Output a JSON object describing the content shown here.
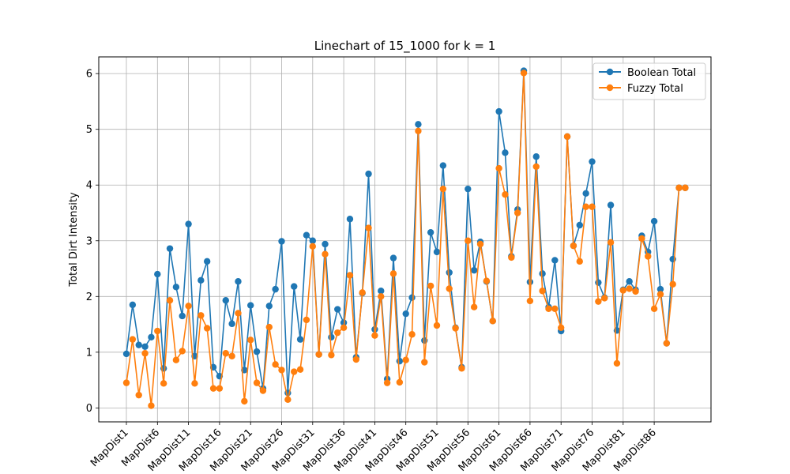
{
  "chart_data": {
    "type": "line",
    "title": "Linechart of 15_1000 for k = 1",
    "xlabel": "",
    "ylabel": "Total Dirt Intensity",
    "ylim": [
      -0.25,
      6.3
    ],
    "yticks": [
      0,
      1,
      2,
      3,
      4,
      5,
      6
    ],
    "grid": true,
    "legend_position": "top-right",
    "x_tick_labels": [
      "MapDist1",
      "MapDist6",
      "MapDist11",
      "MapDist16",
      "MapDist21",
      "MapDist26",
      "MapDist31",
      "MapDist36",
      "MapDist41",
      "MapDist46",
      "MapDist51",
      "MapDist56",
      "MapDist61",
      "MapDist66",
      "MapDist71",
      "MapDist76",
      "MapDist81",
      "MapDist86"
    ],
    "x_tick_every": 5,
    "point_count": 91,
    "series": [
      {
        "name": "Boolean Total",
        "color": "#1f77b4",
        "values": [
          0.97,
          1.85,
          1.13,
          1.1,
          1.27,
          2.4,
          0.71,
          2.86,
          2.17,
          1.65,
          3.3,
          0.93,
          2.29,
          2.63,
          0.73,
          0.57,
          1.93,
          1.51,
          2.27,
          0.68,
          1.84,
          1.01,
          0.35,
          1.83,
          2.13,
          2.99,
          0.27,
          2.18,
          1.23,
          3.1,
          3.0,
          0.96,
          2.94,
          1.27,
          1.77,
          1.53,
          3.39,
          0.91,
          2.06,
          4.2,
          1.41,
          2.1,
          0.52,
          2.69,
          0.84,
          1.69,
          1.98,
          5.09,
          1.21,
          3.15,
          2.8,
          4.35,
          2.43,
          1.44,
          0.73,
          3.93,
          2.47,
          2.98,
          2.27,
          1.56,
          5.32,
          4.58,
          2.72,
          3.56,
          6.05,
          2.26,
          4.51,
          2.41,
          1.81,
          2.65,
          1.38,
          4.87,
          2.91,
          3.28,
          3.85,
          4.42,
          2.25,
          1.98,
          3.64,
          1.39,
          2.12,
          2.27,
          2.12,
          3.09,
          2.8,
          3.35,
          2.13,
          1.16,
          2.67,
          3.95,
          3.95
        ]
      },
      {
        "name": "Fuzzy Total",
        "color": "#ff7f0e",
        "values": [
          0.45,
          1.23,
          0.23,
          0.98,
          0.04,
          1.38,
          0.44,
          1.93,
          0.86,
          1.02,
          1.83,
          0.44,
          1.66,
          1.43,
          0.35,
          0.35,
          0.98,
          0.93,
          1.7,
          0.12,
          1.22,
          0.45,
          0.31,
          1.45,
          0.78,
          0.68,
          0.15,
          0.65,
          0.69,
          1.58,
          2.9,
          0.96,
          2.76,
          0.95,
          1.35,
          1.44,
          2.38,
          0.87,
          2.07,
          3.23,
          1.3,
          2.0,
          0.45,
          2.41,
          0.46,
          0.86,
          1.32,
          4.97,
          0.82,
          2.19,
          1.48,
          3.93,
          2.14,
          1.43,
          0.71,
          3.0,
          1.81,
          2.94,
          2.28,
          1.56,
          4.3,
          3.83,
          2.7,
          3.5,
          6.01,
          1.92,
          4.33,
          2.1,
          1.78,
          1.78,
          1.44,
          4.87,
          2.91,
          2.63,
          3.61,
          3.61,
          1.91,
          1.97,
          2.97,
          0.8,
          2.11,
          2.14,
          2.09,
          3.04,
          2.72,
          1.78,
          2.04,
          1.16,
          2.22,
          3.95,
          3.95
        ]
      }
    ]
  }
}
